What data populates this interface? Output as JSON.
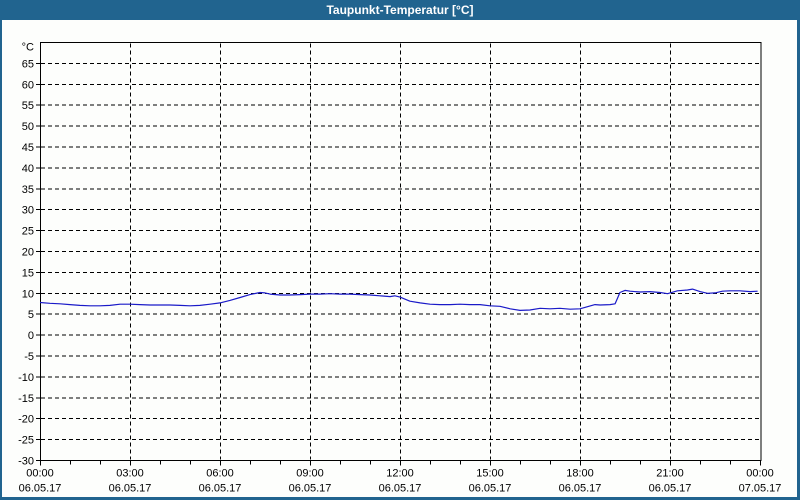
{
  "window": {
    "title": "Taupunkt-Temperatur [°C]"
  },
  "colors": {
    "titlebar_bg": "#21648f",
    "titlebar_text": "#ffffff",
    "frame_border": "#21648f",
    "chart_bg": "#fdfefc",
    "axis": "#000000",
    "grid": "#000000",
    "line": "#1a1ac8"
  },
  "chart_data": {
    "type": "line",
    "title": "Taupunkt-Temperatur [°C]",
    "ylabel": "°C",
    "xlabel": "",
    "ylim": [
      -30,
      70
    ],
    "xlim_hours": [
      0,
      24
    ],
    "grid": "dashed",
    "legend_position": "none",
    "y_ticks": [
      65,
      60,
      55,
      50,
      45,
      40,
      35,
      30,
      25,
      20,
      15,
      10,
      5,
      0,
      -5,
      -10,
      -15,
      -20,
      -25,
      -30
    ],
    "y_grid_ticks": [
      65,
      60,
      55,
      50,
      45,
      40,
      35,
      30,
      25,
      20,
      15,
      10,
      5,
      0,
      -5,
      -10,
      -15,
      -20,
      -25
    ],
    "x_grid_hours": [
      3,
      6,
      9,
      12,
      15,
      18,
      21
    ],
    "x_minor_tick_every_hours": 1,
    "x_major_ticks": [
      {
        "hour": 0,
        "time": "00:00",
        "date": "06.05.17"
      },
      {
        "hour": 3,
        "time": "03:00",
        "date": "06.05.17"
      },
      {
        "hour": 6,
        "time": "06:00",
        "date": "06.05.17"
      },
      {
        "hour": 9,
        "time": "09:00",
        "date": "06.05.17"
      },
      {
        "hour": 12,
        "time": "12:00",
        "date": "06.05.17"
      },
      {
        "hour": 15,
        "time": "15:00",
        "date": "06.05.17"
      },
      {
        "hour": 18,
        "time": "18:00",
        "date": "06.05.17"
      },
      {
        "hour": 21,
        "time": "21:00",
        "date": "06.05.17"
      },
      {
        "hour": 24,
        "time": "00:00",
        "date": "07.05.17"
      }
    ],
    "series": [
      {
        "name": "Taupunkt-Temperatur",
        "unit": "°C",
        "color": "#1a1ac8",
        "points": [
          [
            0,
            7.8
          ],
          [
            0.33,
            7.6
          ],
          [
            0.67,
            7.5
          ],
          [
            1,
            7.3
          ],
          [
            1.33,
            7.1
          ],
          [
            1.67,
            7.0
          ],
          [
            2,
            7.0
          ],
          [
            2.33,
            7.1
          ],
          [
            2.67,
            7.4
          ],
          [
            3,
            7.4
          ],
          [
            3.33,
            7.3
          ],
          [
            3.67,
            7.2
          ],
          [
            4,
            7.2
          ],
          [
            4.33,
            7.2
          ],
          [
            4.67,
            7.1
          ],
          [
            5,
            7.0
          ],
          [
            5.33,
            7.1
          ],
          [
            5.67,
            7.4
          ],
          [
            6,
            7.7
          ],
          [
            6.33,
            8.3
          ],
          [
            6.67,
            9.0
          ],
          [
            7,
            9.7
          ],
          [
            7.33,
            10.2
          ],
          [
            7.5,
            10.1
          ],
          [
            7.67,
            9.8
          ],
          [
            8,
            9.6
          ],
          [
            8.33,
            9.6
          ],
          [
            8.67,
            9.7
          ],
          [
            9,
            9.8
          ],
          [
            9.33,
            9.8
          ],
          [
            9.67,
            9.9
          ],
          [
            10,
            9.8
          ],
          [
            10.33,
            9.8
          ],
          [
            10.67,
            9.7
          ],
          [
            11,
            9.6
          ],
          [
            11.33,
            9.4
          ],
          [
            11.67,
            9.2
          ],
          [
            11.83,
            9.4
          ],
          [
            12,
            9.1
          ],
          [
            12.17,
            8.6
          ],
          [
            12.33,
            8.1
          ],
          [
            12.67,
            7.7
          ],
          [
            13,
            7.4
          ],
          [
            13.33,
            7.3
          ],
          [
            13.67,
            7.3
          ],
          [
            14,
            7.4
          ],
          [
            14.33,
            7.3
          ],
          [
            14.67,
            7.3
          ],
          [
            15,
            7.0
          ],
          [
            15.33,
            6.9
          ],
          [
            15.67,
            6.3
          ],
          [
            16,
            5.9
          ],
          [
            16.33,
            6.0
          ],
          [
            16.67,
            6.4
          ],
          [
            17,
            6.3
          ],
          [
            17.33,
            6.4
          ],
          [
            17.67,
            6.2
          ],
          [
            18,
            6.3
          ],
          [
            18.25,
            6.8
          ],
          [
            18.5,
            7.3
          ],
          [
            18.67,
            7.2
          ],
          [
            19,
            7.3
          ],
          [
            19.17,
            7.5
          ],
          [
            19.25,
            8.8
          ],
          [
            19.33,
            10.2
          ],
          [
            19.5,
            10.7
          ],
          [
            19.67,
            10.5
          ],
          [
            20,
            10.3
          ],
          [
            20.33,
            10.4
          ],
          [
            20.67,
            10.2
          ],
          [
            20.92,
            9.9
          ],
          [
            21,
            10.1
          ],
          [
            21.25,
            10.6
          ],
          [
            21.58,
            10.8
          ],
          [
            21.75,
            11.0
          ],
          [
            22,
            10.4
          ],
          [
            22.25,
            10.0
          ],
          [
            22.5,
            10.1
          ],
          [
            22.75,
            10.5
          ],
          [
            23,
            10.6
          ],
          [
            23.33,
            10.6
          ],
          [
            23.67,
            10.4
          ],
          [
            23.92,
            10.5
          ]
        ]
      }
    ]
  }
}
